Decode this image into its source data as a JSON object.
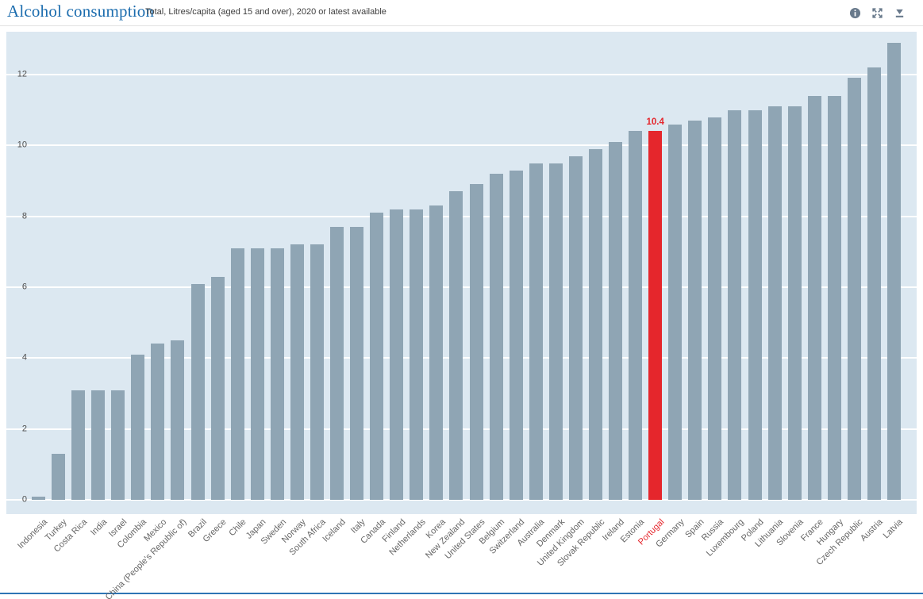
{
  "header": {
    "title": "Alcohol consumption",
    "subtitle": "Total, Litres/capita (aged 15 and over), 2020 or latest available",
    "icons": [
      "info-icon",
      "fullscreen-icon",
      "download-icon"
    ]
  },
  "colors": {
    "title_blue": "#1b6cae",
    "plot_background": "#dce8f1",
    "bar": "#8fa5b4",
    "highlight_red": "#e5262c",
    "gridline": "#ffffff",
    "y_tick_text": "#4d4d4d",
    "x_label_text": "#666666",
    "footer_rule_blue": "#2e75b5"
  },
  "chart_data": {
    "type": "bar",
    "title": "Alcohol consumption",
    "subtitle": "Total, Litres/capita (aged 15 and over), 2020 or latest available",
    "ylabel": "Litres/capita (aged 15 and over)",
    "xlabel": "",
    "ylim": [
      0,
      13.2
    ],
    "yticks": [
      0,
      2,
      4,
      6,
      8,
      10,
      12
    ],
    "grid": true,
    "legend_position": "none",
    "categories": [
      "Indonesia",
      "Turkey",
      "Costa Rica",
      "India",
      "Israel",
      "Colombia",
      "Mexico",
      "China (People's Republic of)",
      "Brazil",
      "Greece",
      "Chile",
      "Japan",
      "Sweden",
      "Norway",
      "South Africa",
      "Iceland",
      "Italy",
      "Canada",
      "Finland",
      "Netherlands",
      "Korea",
      "New Zealand",
      "United States",
      "Belgium",
      "Switzerland",
      "Australia",
      "Denmark",
      "United Kingdom",
      "Slovak Republic",
      "Ireland",
      "Estonia",
      "Portugal",
      "Germany",
      "Spain",
      "Russia",
      "Luxembourg",
      "Poland",
      "Lithuania",
      "Slovenia",
      "France",
      "Hungary",
      "Czech Republic",
      "Austria",
      "Latvia"
    ],
    "values": [
      0.1,
      1.3,
      3.1,
      3.1,
      3.1,
      4.1,
      4.4,
      4.5,
      6.1,
      6.3,
      7.1,
      7.1,
      7.1,
      7.2,
      7.2,
      7.7,
      7.7,
      8.1,
      8.2,
      8.2,
      8.3,
      8.7,
      8.9,
      9.2,
      9.3,
      9.5,
      9.5,
      9.7,
      9.9,
      10.1,
      10.4,
      10.4,
      10.6,
      10.7,
      10.8,
      11.0,
      11.0,
      11.1,
      11.1,
      11.4,
      11.4,
      11.9,
      12.2,
      12.9
    ],
    "highlight": {
      "category": "Portugal",
      "value": 10.4,
      "data_label": "10.4",
      "color": "#e5262c"
    },
    "bar_color": "#8fa5b4"
  }
}
